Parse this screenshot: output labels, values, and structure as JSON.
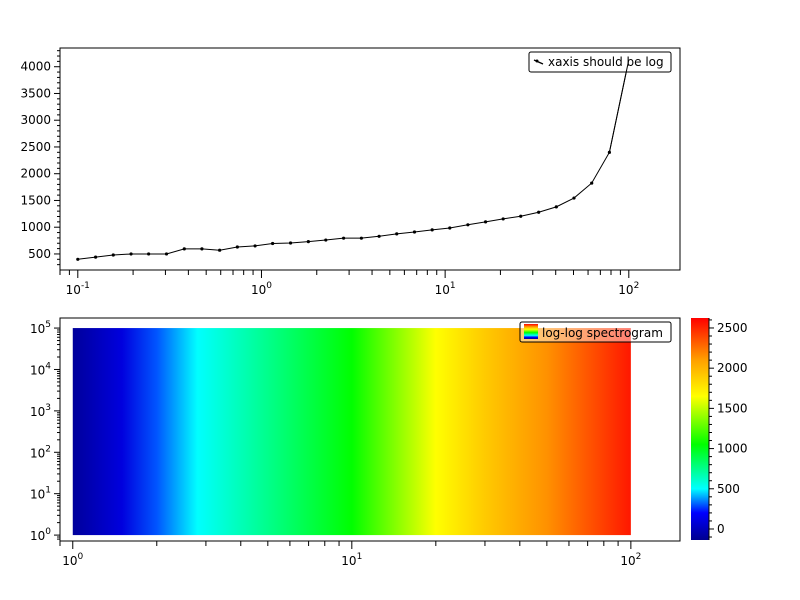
{
  "chart_data": [
    {
      "type": "line",
      "title": "",
      "xlabel": "",
      "ylabel": "",
      "x_scale": "log",
      "y_scale": "linear",
      "xlim": [
        0.08,
        190
      ],
      "ylim": [
        200,
        4350
      ],
      "x_ticks": [
        0.1,
        1,
        10,
        100
      ],
      "x_tick_labels": [
        {
          "base": "10",
          "exp": "-1"
        },
        {
          "base": "10",
          "exp": "0"
        },
        {
          "base": "10",
          "exp": "1"
        },
        {
          "base": "10",
          "exp": "2"
        }
      ],
      "y_ticks": [
        500,
        1000,
        1500,
        2000,
        2500,
        3000,
        3500,
        4000
      ],
      "y_tick_labels": [
        "500",
        "1000",
        "1500",
        "2000",
        "2500",
        "3000",
        "3500",
        "4000"
      ],
      "grid": false,
      "legend": {
        "position": "top-right",
        "entries": [
          "xaxis should be log"
        ]
      },
      "series": [
        {
          "name": "xaxis should be log",
          "color": "#000000",
          "marker": "dot",
          "x": [
            0.1,
            0.125,
            0.156,
            0.195,
            0.243,
            0.304,
            0.38,
            0.474,
            0.592,
            0.739,
            0.923,
            1.15,
            1.44,
            1.8,
            2.24,
            2.8,
            3.5,
            4.37,
            5.45,
            6.81,
            8.5,
            10.6,
            13.3,
            16.6,
            20.7,
            25.8,
            32.3,
            40.3,
            50.3,
            62.8,
            78.4,
            100
          ],
          "y": [
            400,
            440,
            480,
            500,
            500,
            500,
            595,
            595,
            570,
            630,
            650,
            695,
            705,
            730,
            760,
            795,
            795,
            830,
            875,
            910,
            950,
            985,
            1045,
            1100,
            1155,
            1205,
            1280,
            1380,
            1545,
            1825,
            2400,
            4130
          ]
        }
      ]
    },
    {
      "type": "heatmap",
      "title": "",
      "xlabel": "",
      "ylabel": "",
      "x_scale": "log",
      "y_scale": "log",
      "xlim": [
        0.9,
        150
      ],
      "ylim": [
        0.72,
        175000
      ],
      "x_extent": [
        1,
        100
      ],
      "y_extent": [
        1,
        100000
      ],
      "x_ticks": [
        1,
        10,
        100
      ],
      "x_tick_labels": [
        {
          "base": "10",
          "exp": "0"
        },
        {
          "base": "10",
          "exp": "1"
        },
        {
          "base": "10",
          "exp": "2"
        }
      ],
      "y_ticks": [
        1,
        10,
        100,
        1000,
        10000,
        100000
      ],
      "y_tick_labels": [
        {
          "base": "10",
          "exp": "0"
        },
        {
          "base": "10",
          "exp": "1"
        },
        {
          "base": "10",
          "exp": "2"
        },
        {
          "base": "10",
          "exp": "3"
        },
        {
          "base": "10",
          "exp": "4"
        },
        {
          "base": "10",
          "exp": "5"
        }
      ],
      "grid": false,
      "legend": {
        "position": "top-right",
        "entries": [
          "log-log spectrogram"
        ]
      },
      "z_profile_along_x": {
        "x": [
          1,
          1.5,
          2,
          2.8,
          5,
          10,
          20,
          30,
          50,
          100
        ],
        "z": [
          -100,
          100,
          300,
          500,
          750,
          1050,
          1650,
          1900,
          2150,
          2550
        ]
      },
      "colorbar": {
        "range": [
          -137,
          2624
        ],
        "ticks": [
          0,
          500,
          1000,
          1500,
          2000,
          2500
        ],
        "tick_labels": [
          "0",
          "500",
          "1000",
          "1500",
          "2000",
          "2500"
        ],
        "colormap": [
          {
            "value": -137,
            "color": "#00008f"
          },
          {
            "value": 200,
            "color": "#0000ff"
          },
          {
            "value": 500,
            "color": "#00ffff"
          },
          {
            "value": 1050,
            "color": "#00ff00"
          },
          {
            "value": 1650,
            "color": "#ffff00"
          },
          {
            "value": 2100,
            "color": "#ffa000"
          },
          {
            "value": 2624,
            "color": "#ff0000"
          }
        ]
      }
    }
  ]
}
